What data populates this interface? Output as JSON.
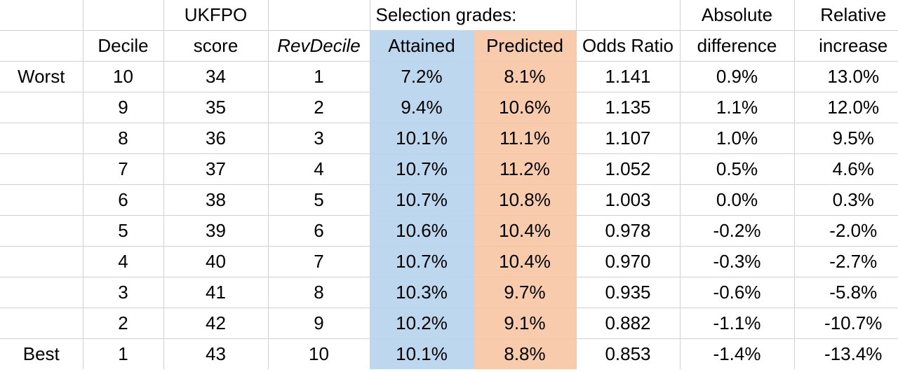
{
  "header": {
    "row1": {
      "col0": "",
      "col1": "",
      "col2": "UKFPO",
      "col3": "",
      "selection_grades": "Selection grades:",
      "col6": "",
      "col7": "Absolute",
      "col8": "Relative"
    },
    "row2": {
      "col0": "",
      "col1": "Decile",
      "col2": "score",
      "col3": "RevDecile",
      "col4": "Attained",
      "col5": "Predicted",
      "col6": "Odds Ratio",
      "col7": "difference",
      "col8": "increase"
    }
  },
  "rows": [
    {
      "label": "Worst",
      "decile": "10",
      "score": "34",
      "rev": "1",
      "attained": "7.2%",
      "predicted": "8.1%",
      "odds": "1.141",
      "abs": "0.9%",
      "rel": "13.0%"
    },
    {
      "label": "",
      "decile": "9",
      "score": "35",
      "rev": "2",
      "attained": "9.4%",
      "predicted": "10.6%",
      "odds": "1.135",
      "abs": "1.1%",
      "rel": "12.0%"
    },
    {
      "label": "",
      "decile": "8",
      "score": "36",
      "rev": "3",
      "attained": "10.1%",
      "predicted": "11.1%",
      "odds": "1.107",
      "abs": "1.0%",
      "rel": "9.5%"
    },
    {
      "label": "",
      "decile": "7",
      "score": "37",
      "rev": "4",
      "attained": "10.7%",
      "predicted": "11.2%",
      "odds": "1.052",
      "abs": "0.5%",
      "rel": "4.6%"
    },
    {
      "label": "",
      "decile": "6",
      "score": "38",
      "rev": "5",
      "attained": "10.7%",
      "predicted": "10.8%",
      "odds": "1.003",
      "abs": "0.0%",
      "rel": "0.3%"
    },
    {
      "label": "",
      "decile": "5",
      "score": "39",
      "rev": "6",
      "attained": "10.6%",
      "predicted": "10.4%",
      "odds": "0.978",
      "abs": "-0.2%",
      "rel": "-2.0%"
    },
    {
      "label": "",
      "decile": "4",
      "score": "40",
      "rev": "7",
      "attained": "10.7%",
      "predicted": "10.4%",
      "odds": "0.970",
      "abs": "-0.3%",
      "rel": "-2.7%"
    },
    {
      "label": "",
      "decile": "3",
      "score": "41",
      "rev": "8",
      "attained": "10.3%",
      "predicted": "9.7%",
      "odds": "0.935",
      "abs": "-0.6%",
      "rel": "-5.8%"
    },
    {
      "label": "",
      "decile": "2",
      "score": "42",
      "rev": "9",
      "attained": "10.2%",
      "predicted": "9.1%",
      "odds": "0.882",
      "abs": "-1.1%",
      "rel": "-10.7%"
    },
    {
      "label": "Best",
      "decile": "1",
      "score": "43",
      "rev": "10",
      "attained": "10.1%",
      "predicted": "8.8%",
      "odds": "0.853",
      "abs": "-1.4%",
      "rel": "-13.4%"
    }
  ],
  "colors": {
    "attained_fill": "#bdd7ee",
    "predicted_fill": "#f8cbad",
    "gridline": "#d0d0d0"
  }
}
